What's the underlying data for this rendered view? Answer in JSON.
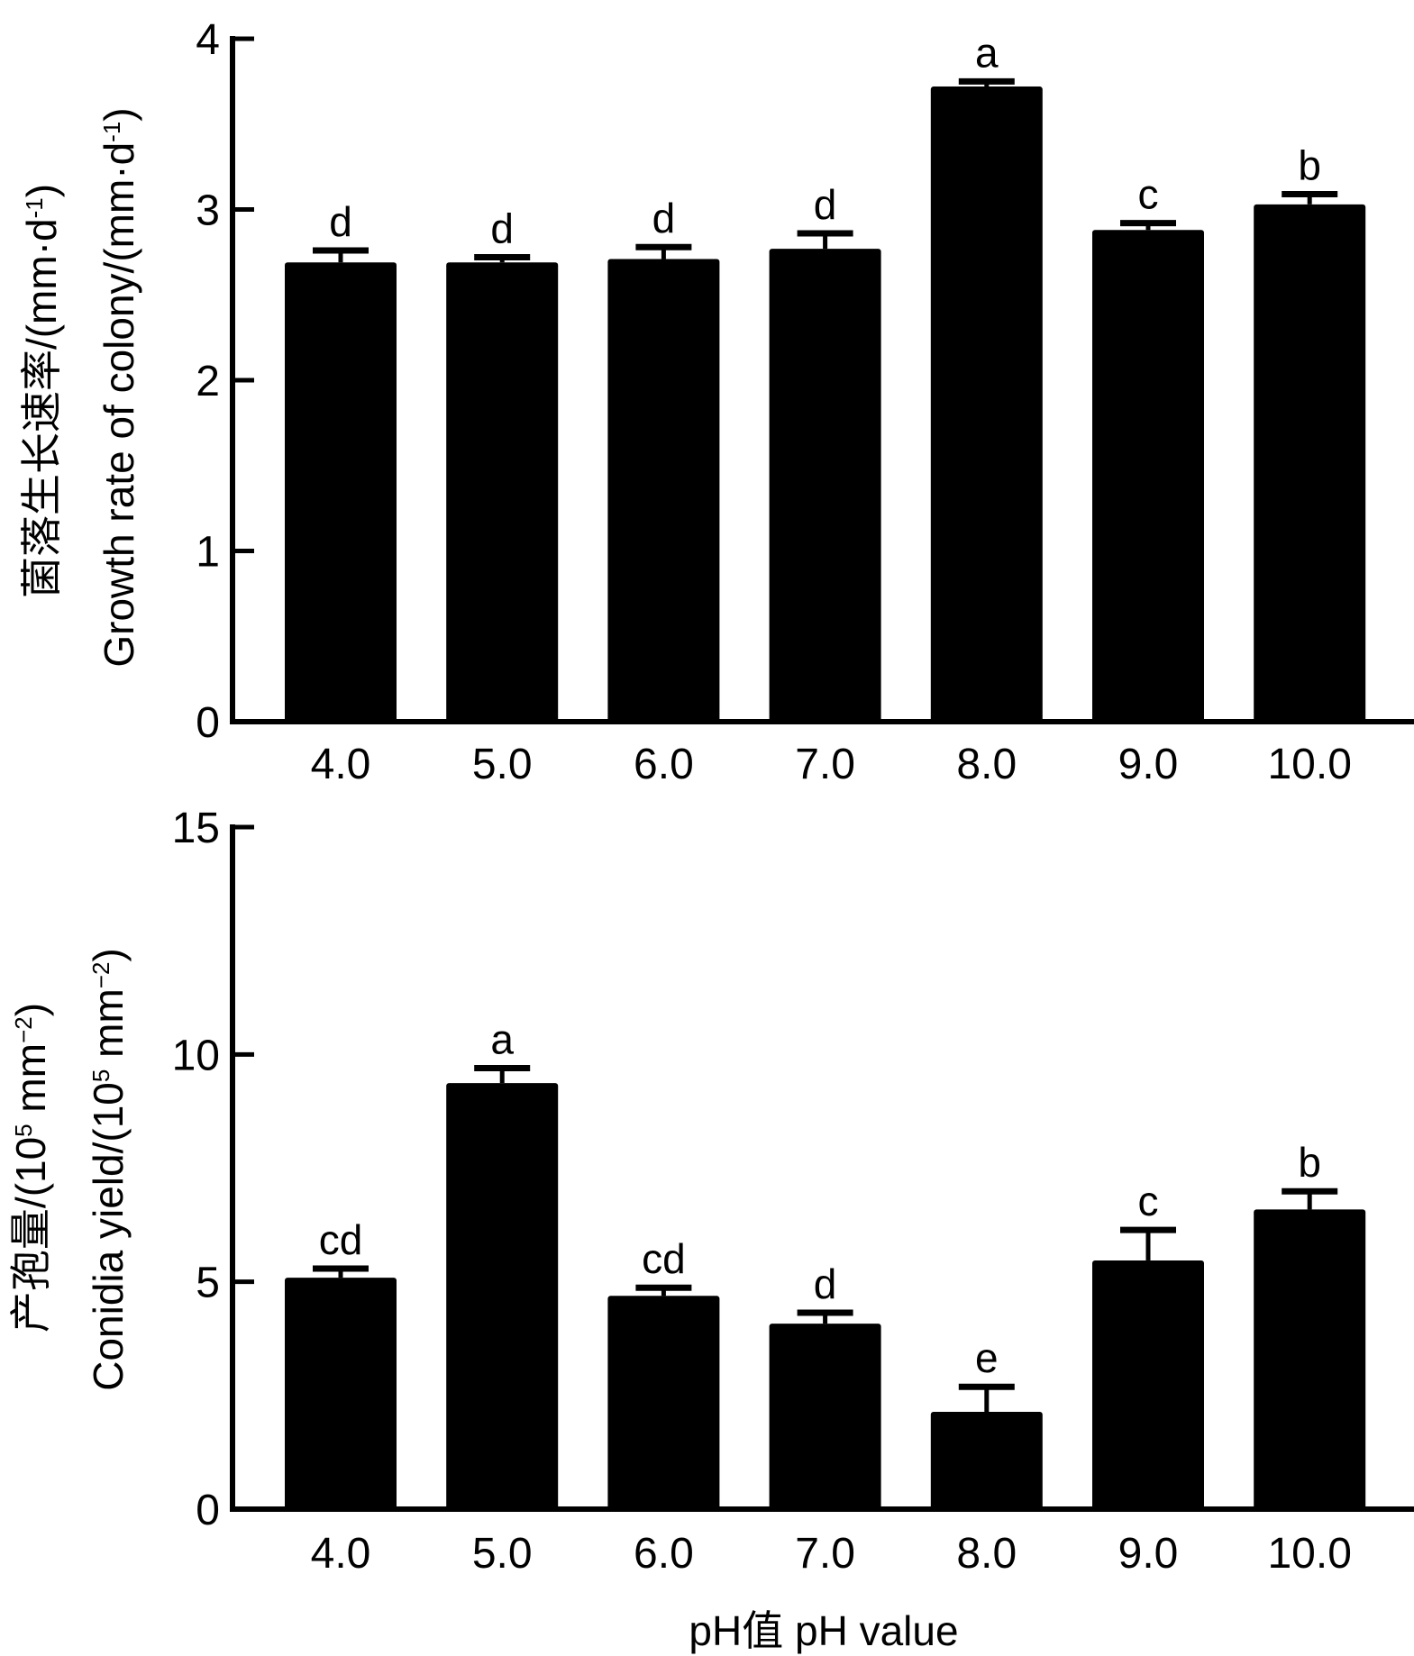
{
  "x_axis_title": "pH值 pH value",
  "chart_data": [
    {
      "type": "bar",
      "title": "",
      "ylabel_cn": "菌落生长速率/(mm·d",
      "ylabel_cn_sup": "-1",
      "ylabel_cn_end": ")",
      "ylabel_en": "Growth rate of colony/(mm·d",
      "ylabel_en_sup": "-1",
      "ylabel_en_end": ")",
      "xlabel": "",
      "ylim": [
        0,
        4
      ],
      "yticks": [
        "0",
        "1",
        "2",
        "3",
        "4"
      ],
      "ytick_values": [
        0,
        1,
        2,
        3,
        4
      ],
      "categories": [
        "4.0",
        "5.0",
        "6.0",
        "7.0",
        "8.0",
        "9.0",
        "10.0"
      ],
      "values": [
        2.69,
        2.69,
        2.71,
        2.77,
        3.72,
        2.88,
        3.03
      ],
      "errors": [
        0.07,
        0.03,
        0.07,
        0.09,
        0.03,
        0.04,
        0.06
      ],
      "significance": [
        "d",
        "d",
        "d",
        "d",
        "a",
        "c",
        "b"
      ],
      "bar_color": "#000000",
      "grid": false,
      "legend": "none"
    },
    {
      "type": "bar",
      "title": "",
      "ylabel_cn": "产孢量/(10",
      "ylabel_cn_sup1": "5",
      "ylabel_cn_mid": " mm",
      "ylabel_cn_sup2": "−2",
      "ylabel_cn_end": ")",
      "ylabel_en": "Conidia yield/(10",
      "ylabel_en_sup1": "5",
      "ylabel_en_mid": " mm",
      "ylabel_en_sup2": "−2",
      "ylabel_en_end": ")",
      "xlabel": "pH值 pH value",
      "ylim": [
        0,
        15
      ],
      "yticks": [
        "0",
        "5",
        "10",
        "15"
      ],
      "ytick_values": [
        0,
        5,
        10,
        15
      ],
      "categories": [
        "4.0",
        "5.0",
        "6.0",
        "7.0",
        "8.0",
        "9.0",
        "10.0"
      ],
      "values": [
        5.09,
        9.37,
        4.69,
        4.08,
        2.14,
        5.47,
        6.59
      ],
      "errors": [
        0.2,
        0.33,
        0.18,
        0.24,
        0.55,
        0.67,
        0.4
      ],
      "significance": [
        "cd",
        "a",
        "cd",
        "d",
        "e",
        "c",
        "b"
      ],
      "bar_color": "#000000",
      "grid": false,
      "legend": "none"
    }
  ]
}
